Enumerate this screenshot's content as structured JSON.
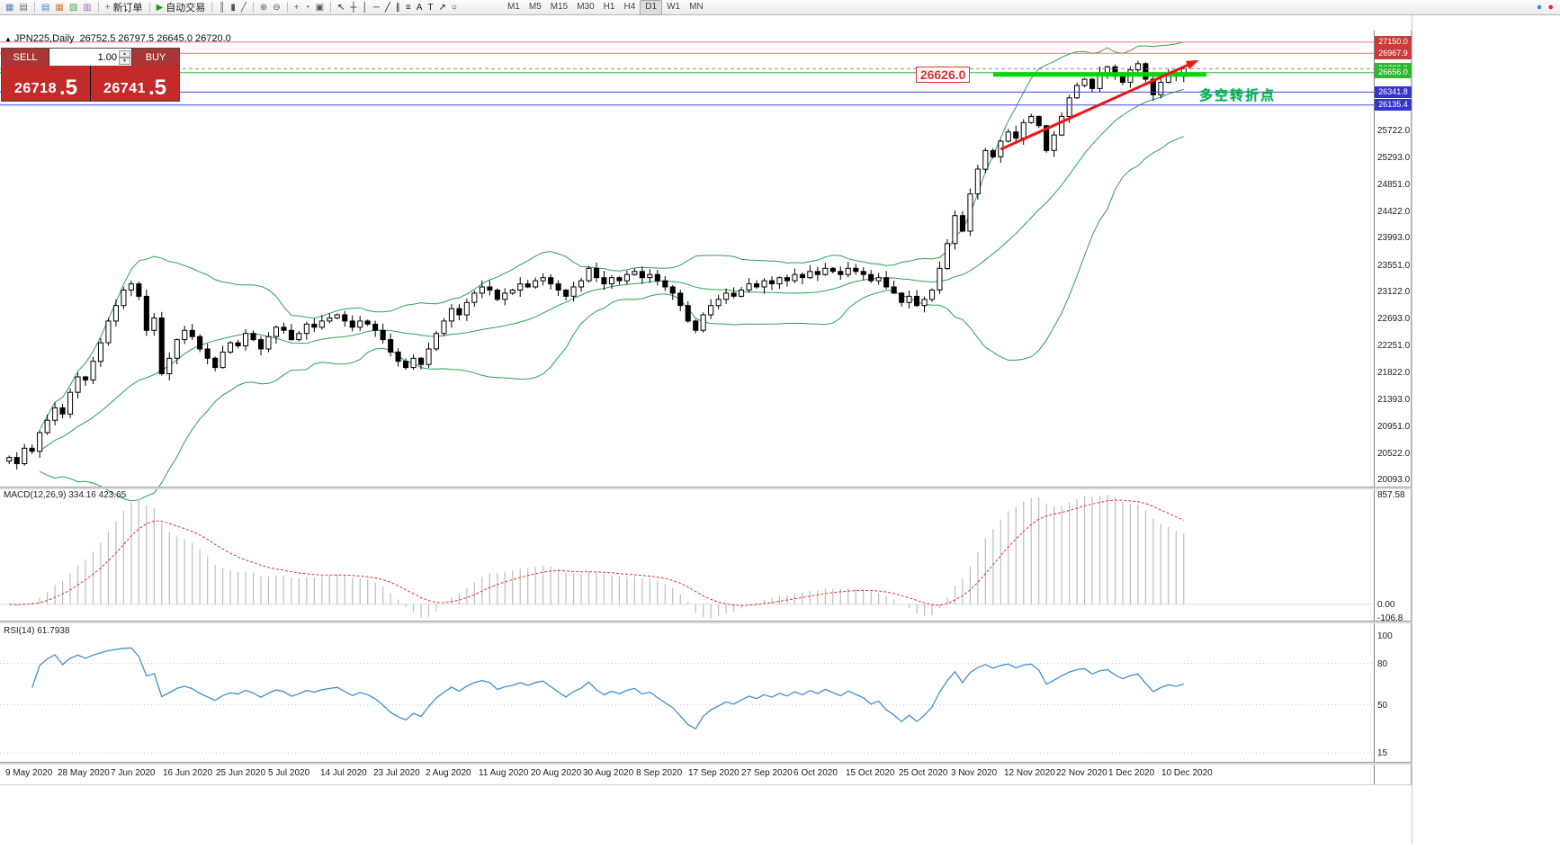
{
  "toolbar": {
    "items": [
      {
        "name": "new-chart-button",
        "glyph": "▦",
        "color": "#5a7fb5"
      },
      {
        "name": "profiles-button",
        "glyph": "▤",
        "color": "#6e6e6e"
      },
      {
        "type": "sep"
      },
      {
        "name": "market-watch-button",
        "glyph": "▤",
        "color": "#3f8fd0"
      },
      {
        "name": "data-window-button",
        "glyph": "▦",
        "color": "#c9812d"
      },
      {
        "name": "navigator-button",
        "glyph": "▧",
        "color": "#4aa35a"
      },
      {
        "name": "terminal-button",
        "glyph": "▥",
        "color": "#9a6fb0"
      },
      {
        "type": "sep"
      },
      {
        "name": "new-order-button",
        "glyph": "+",
        "color": "#1d9f1d",
        "label": "新订单"
      },
      {
        "type": "sep"
      },
      {
        "name": "autotrading-button",
        "glyph": "▶",
        "color": "#1d9f1d",
        "label": "自动交易"
      },
      {
        "type": "sep"
      },
      {
        "name": "bars-button",
        "glyph": "║",
        "color": "#555555"
      },
      {
        "name": "candles-button",
        "glyph": "▮",
        "color": "#555555"
      },
      {
        "name": "line-chart-button",
        "glyph": "╱",
        "color": "#555555"
      },
      {
        "type": "sep"
      },
      {
        "name": "zoom-in-button",
        "glyph": "⊕",
        "color": "#555555"
      },
      {
        "name": "zoom-out-button",
        "glyph": "⊖",
        "color": "#555555"
      },
      {
        "type": "sep"
      },
      {
        "name": "indicators-button",
        "glyph": "+",
        "color": "#1d9f1d"
      },
      {
        "name": "periods-button",
        "glyph": "◔",
        "color": "#555555"
      },
      {
        "name": "templates-button",
        "glyph": "▣",
        "color": "#555555"
      },
      {
        "type": "sep"
      },
      {
        "name": "cursor-button",
        "glyph": "↖",
        "color": "#222222"
      },
      {
        "name": "crosshair-button",
        "glyph": "┼",
        "color": "#222222"
      },
      {
        "name": "vertical-line-button",
        "glyph": "│",
        "color": "#222222"
      },
      {
        "name": "horizontal-line-button",
        "glyph": "─",
        "color": "#222222"
      },
      {
        "name": "trendline-button",
        "glyph": "╱",
        "color": "#222222"
      },
      {
        "name": "channel-button",
        "glyph": "∥",
        "color": "#222222"
      },
      {
        "name": "fibonacci-button",
        "glyph": "≡",
        "color": "#222222"
      },
      {
        "name": "text-button",
        "glyph": "A",
        "color": "#222222"
      },
      {
        "name": "label-button",
        "glyph": "T",
        "color": "#222222"
      },
      {
        "name": "arrows-button",
        "glyph": "↗",
        "color": "#222222"
      },
      {
        "name": "shapes-button",
        "glyph": "○",
        "color": "#222222"
      }
    ],
    "timeframes": [
      "M1",
      "M5",
      "M15",
      "M30",
      "H1",
      "H4",
      "D1",
      "W1",
      "MN"
    ],
    "active_timeframe": "D1",
    "right_icons": [
      {
        "name": "community-status-icon",
        "glyph": "●",
        "color": "#3f8fd0"
      },
      {
        "name": "alert-status-icon",
        "glyph": "●",
        "color": "#e03030"
      }
    ]
  },
  "chart_header": {
    "collapse_marker": "▲",
    "symbol": "JPN225,Daily",
    "ohlc": "26752.5 26797.5 26645.0 26720.0"
  },
  "trade_panel": {
    "sell": "SELL",
    "buy": "BUY",
    "volume": "1.00",
    "sell_price": "26718",
    "sell_pip": "5",
    "buy_price": "26741",
    "buy_pip": "5"
  },
  "annotations": {
    "level_label": "26626.0",
    "turning_text": "多空转折点",
    "level_price": 26626.0,
    "line_from_day": 129,
    "line_to_day": 157,
    "arrow_from": {
      "day": 130,
      "price": 25420
    },
    "arrow_to": {
      "day": 156,
      "price": 26860
    }
  },
  "price_axis": {
    "labels": [
      "25722.0",
      "25293.0",
      "24851.0",
      "24422.0",
      "23993.0",
      "23551.0",
      "23122.0",
      "22693.0",
      "22251.0",
      "21822.0",
      "21393.0",
      "20951.0",
      "20522.0",
      "20093.0"
    ],
    "tags": [
      {
        "text": "27150.0",
        "price": 27150.0,
        "bg": "#cc3b3b"
      },
      {
        "text": "26967.9",
        "price": 26967.9,
        "bg": "#cc3b3b"
      },
      {
        "text": "26720.0",
        "price": 26720.0,
        "bg": "#2eb82e"
      },
      {
        "text": "26656.0",
        "price": 26656.0,
        "bg": "#2eb82e"
      },
      {
        "text": "26341.8",
        "price": 26341.8,
        "bg": "#3535cc"
      },
      {
        "text": "26135.4",
        "price": 26135.4,
        "bg": "#3535cc"
      }
    ]
  },
  "macd_panel": {
    "label": "MACD(12,26,9) 334.16 423.65",
    "axis_max": "857.58",
    "axis_zero": "0.00",
    "axis_min": "-106.8"
  },
  "rsi_panel": {
    "label": "RSI(14) 61.7938",
    "axis": [
      {
        "text": "100",
        "value": 100
      },
      {
        "text": "80",
        "value": 80
      },
      {
        "text": "50",
        "value": 50
      },
      {
        "text": "15",
        "value": 15
      }
    ]
  },
  "time_axis": [
    "9 May 2020",
    "28 May 2020",
    "7 Jun 2020",
    "16 Jun 2020",
    "25 Jun 2020",
    "5 Jul 2020",
    "14 Jul 2020",
    "23 Jul 2020",
    "2 Aug 2020",
    "11 Aug 2020",
    "20 Aug 2020",
    "30 Aug 2020",
    "8 Sep 2020",
    "17 Sep 2020",
    "27 Sep 2020",
    "6 Oct 2020",
    "15 Oct 2020",
    "25 Oct 2020",
    "3 Nov 2020",
    "12 Nov 2020",
    "22 Nov 2020",
    "1 Dec 2020",
    "10 Dec 2020"
  ],
  "chart_data": {
    "type": "candlestick",
    "symbol": "JPN225",
    "period": "Daily",
    "y_min": 19980,
    "y_max": 27320,
    "last_bar": {
      "open": 26752.5,
      "high": 26797.5,
      "low": 26645.0,
      "close": 26720.0
    },
    "bid": 26718.5,
    "ask": 26741.5,
    "closes": [
      20450,
      20350,
      20600,
      20550,
      20850,
      21050,
      21250,
      21150,
      21500,
      21750,
      21700,
      22000,
      22300,
      22650,
      22900,
      23150,
      23250,
      23050,
      22500,
      22700,
      21800,
      22050,
      22350,
      22500,
      22400,
      22200,
      22050,
      21900,
      22150,
      22300,
      22250,
      22450,
      22350,
      22200,
      22400,
      22550,
      22500,
      22350,
      22450,
      22600,
      22550,
      22650,
      22700,
      22750,
      22650,
      22550,
      22650,
      22600,
      22500,
      22350,
      22150,
      22000,
      21900,
      22050,
      21950,
      22200,
      22450,
      22650,
      22850,
      22750,
      22950,
      23100,
      23200,
      23150,
      23000,
      23100,
      23150,
      23250,
      23200,
      23300,
      23350,
      23250,
      23150,
      23050,
      23200,
      23300,
      23500,
      23350,
      23250,
      23350,
      23300,
      23400,
      23450,
      23350,
      23400,
      23300,
      23200,
      23100,
      22900,
      22650,
      22500,
      22750,
      22900,
      23000,
      23100,
      23050,
      23150,
      23250,
      23200,
      23300,
      23250,
      23350,
      23300,
      23400,
      23350,
      23450,
      23400,
      23500,
      23450,
      23400,
      23500,
      23450,
      23400,
      23300,
      23350,
      23200,
      23100,
      22950,
      23050,
      22900,
      23000,
      23150,
      23500,
      23900,
      24350,
      24100,
      24700,
      25100,
      25400,
      25300,
      25550,
      25700,
      25600,
      25850,
      25950,
      25800,
      25400,
      25650,
      25950,
      26250,
      26450,
      26550,
      26400,
      26650,
      26750,
      26600,
      26500,
      26700,
      26800,
      26550,
      26300,
      26500,
      26650,
      26600,
      26720
    ],
    "levels": [
      {
        "price": 27150.0,
        "color": "#ff7070",
        "dash": ""
      },
      {
        "price": 26967.9,
        "color": "#ff7070",
        "dash": ""
      },
      {
        "price": 26720.0,
        "color": "#909090",
        "dash": "4,3"
      },
      {
        "price": 26656.0,
        "color": "#2eb82e",
        "dash": ""
      },
      {
        "price": 26341.8,
        "color": "#4444e0",
        "dash": ""
      },
      {
        "price": 26135.4,
        "color": "#4444e0",
        "dash": ""
      }
    ],
    "indicators": {
      "bollinger": {
        "period": 20,
        "deviation": 2
      },
      "macd": {
        "fast": 12,
        "slow": 26,
        "signal": 9,
        "display_max": 857.58,
        "display_min": -106.8
      },
      "rsi": {
        "period": 14,
        "levels": [
          80,
          50,
          15
        ]
      }
    },
    "colors": {
      "bull": "#ffffff",
      "bear": "#000000",
      "outline": "#000000",
      "bollinger": "#2e9e5b",
      "macd_hist": "#bdbdbd",
      "macd_signal": "#e03636",
      "rsi_line": "#3f8fd0",
      "accent_green": "#00d500",
      "accent_red": "#ef1515"
    }
  }
}
